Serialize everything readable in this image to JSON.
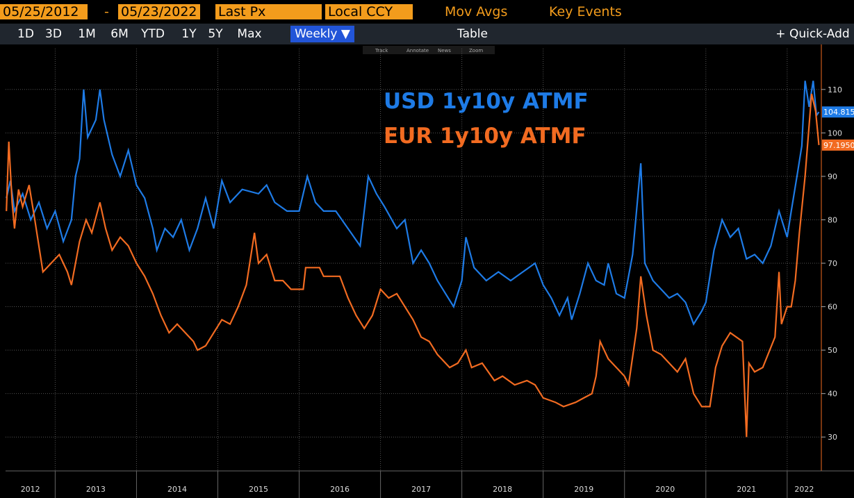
{
  "toolbar": {
    "start_date": "05/25/2012",
    "date_separator": "-",
    "end_date": "05/23/2022",
    "field": "Last Px",
    "currency": "Local CCY",
    "mov_avgs": "Mov Avgs",
    "key_events": "Key Events",
    "ranges": [
      "1D",
      "3D",
      "1M",
      "6M",
      "YTD",
      "1Y",
      "5Y",
      "Max"
    ],
    "frequency": "Weekly ▼",
    "table": "Table",
    "quick_add": "+ Quick-Add",
    "tools": [
      "Track",
      "Annotate",
      "News",
      "Zoom"
    ]
  },
  "chart_data": {
    "type": "line",
    "xlim": [
      2012.39,
      2022.42
    ],
    "xticks": [
      2012,
      2013,
      2014,
      2015,
      2016,
      2017,
      2018,
      2019,
      2020,
      2021,
      2022
    ],
    "ylim": [
      22.2,
      119.4
    ],
    "yticks": [
      30,
      40,
      50,
      60,
      70,
      80,
      90,
      100,
      110
    ],
    "grid": true,
    "series": [
      {
        "name": "USD 1y10y ATMF",
        "color": "#1e7be6",
        "last_value_label": "104.815",
        "x": [
          2012.4,
          2012.45,
          2012.5,
          2012.6,
          2012.7,
          2012.8,
          2012.9,
          2013.0,
          2013.1,
          2013.2,
          2013.25,
          2013.3,
          2013.35,
          2013.4,
          2013.5,
          2013.55,
          2013.6,
          2013.7,
          2013.8,
          2013.9,
          2014.0,
          2014.1,
          2014.2,
          2014.25,
          2014.35,
          2014.45,
          2014.55,
          2014.65,
          2014.75,
          2014.85,
          2014.95,
          2015.05,
          2015.15,
          2015.3,
          2015.5,
          2015.6,
          2015.7,
          2015.85,
          2016.0,
          2016.1,
          2016.2,
          2016.3,
          2016.45,
          2016.6,
          2016.75,
          2016.85,
          2016.95,
          2017.05,
          2017.2,
          2017.3,
          2017.4,
          2017.5,
          2017.6,
          2017.7,
          2017.8,
          2017.9,
          2018.0,
          2018.05,
          2018.15,
          2018.3,
          2018.45,
          2018.6,
          2018.75,
          2018.9,
          2019.0,
          2019.1,
          2019.2,
          2019.3,
          2019.35,
          2019.45,
          2019.55,
          2019.65,
          2019.75,
          2019.8,
          2019.9,
          2020.0,
          2020.1,
          2020.2,
          2020.25,
          2020.35,
          2020.45,
          2020.55,
          2020.65,
          2020.75,
          2020.85,
          2020.95,
          2021.0,
          2021.1,
          2021.2,
          2021.3,
          2021.4,
          2021.5,
          2021.6,
          2021.7,
          2021.8,
          2021.9,
          2022.0,
          2022.05,
          2022.12,
          2022.18,
          2022.22,
          2022.27,
          2022.32,
          2022.36,
          2022.39
        ],
        "values": [
          85,
          89,
          82,
          86,
          80,
          84,
          78,
          82,
          75,
          80,
          90,
          94,
          110,
          99,
          103,
          110,
          103,
          95,
          90,
          96,
          88,
          85,
          78,
          73,
          78,
          76,
          80,
          73,
          78,
          85,
          78,
          89,
          84,
          87,
          86,
          88,
          84,
          82,
          82,
          90,
          84,
          82,
          82,
          78,
          74,
          90,
          86,
          83,
          78,
          80,
          70,
          73,
          70,
          66,
          63,
          60,
          66,
          76,
          69,
          66,
          68,
          66,
          68,
          70,
          65,
          62,
          58,
          62,
          57,
          63,
          70,
          66,
          65,
          70,
          63,
          62,
          72,
          93,
          70,
          66,
          64,
          62,
          63,
          61,
          56,
          59,
          61,
          73,
          80,
          76,
          78,
          71,
          72,
          70,
          74,
          82,
          76,
          82,
          90,
          97,
          112,
          106,
          112,
          104,
          104.815
        ]
      },
      {
        "name": "EUR 1y10y ATMF",
        "color": "#f26b21",
        "last_value_label": "97.1950",
        "x": [
          2012.4,
          2012.43,
          2012.47,
          2012.5,
          2012.55,
          2012.6,
          2012.68,
          2012.75,
          2012.85,
          2012.95,
          2013.05,
          2013.15,
          2013.2,
          2013.3,
          2013.38,
          2013.45,
          2013.55,
          2013.62,
          2013.7,
          2013.8,
          2013.9,
          2014.0,
          2014.1,
          2014.2,
          2014.3,
          2014.4,
          2014.5,
          2014.6,
          2014.7,
          2014.75,
          2014.85,
          2014.95,
          2015.05,
          2015.15,
          2015.25,
          2015.35,
          2015.45,
          2015.5,
          2015.6,
          2015.7,
          2015.8,
          2015.9,
          2016.05,
          2016.08,
          2016.25,
          2016.3,
          2016.5,
          2016.6,
          2016.7,
          2016.8,
          2016.9,
          2017.0,
          2017.1,
          2017.2,
          2017.3,
          2017.4,
          2017.5,
          2017.6,
          2017.7,
          2017.85,
          2017.95,
          2018.05,
          2018.12,
          2018.25,
          2018.4,
          2018.5,
          2018.65,
          2018.8,
          2018.9,
          2019.0,
          2019.15,
          2019.25,
          2019.4,
          2019.5,
          2019.6,
          2019.65,
          2019.7,
          2019.8,
          2019.9,
          2020.0,
          2020.05,
          2020.15,
          2020.2,
          2020.27,
          2020.35,
          2020.45,
          2020.55,
          2020.65,
          2020.75,
          2020.85,
          2020.95,
          2021.05,
          2021.12,
          2021.2,
          2021.3,
          2021.45,
          2021.5,
          2021.53,
          2021.6,
          2021.7,
          2021.85,
          2021.9,
          2021.93,
          2022.0,
          2022.05,
          2022.1,
          2022.15,
          2022.22,
          2022.3,
          2022.35,
          2022.39
        ],
        "values": [
          82,
          98,
          84,
          78,
          87,
          83,
          88,
          80,
          68,
          70,
          72,
          68,
          65,
          75,
          80,
          77,
          84,
          78,
          73,
          76,
          74,
          70,
          67,
          63,
          58,
          54,
          56,
          54,
          52,
          50,
          51,
          54,
          57,
          56,
          60,
          65,
          77,
          70,
          72,
          66,
          66,
          64,
          64,
          69,
          69,
          67,
          67,
          62,
          58,
          55,
          58,
          64,
          62,
          63,
          60,
          57,
          53,
          52,
          49,
          46,
          47,
          50,
          46,
          47,
          43,
          44,
          42,
          43,
          42,
          39,
          38,
          37,
          38,
          39,
          40,
          44,
          52,
          48,
          46,
          44,
          42,
          55,
          67,
          58,
          50,
          49,
          47,
          45,
          48,
          40,
          37,
          37,
          46,
          51,
          54,
          52,
          30,
          47,
          45,
          46,
          53,
          68,
          56,
          60,
          60,
          66,
          77,
          90,
          109,
          105,
          97.195
        ]
      }
    ]
  }
}
